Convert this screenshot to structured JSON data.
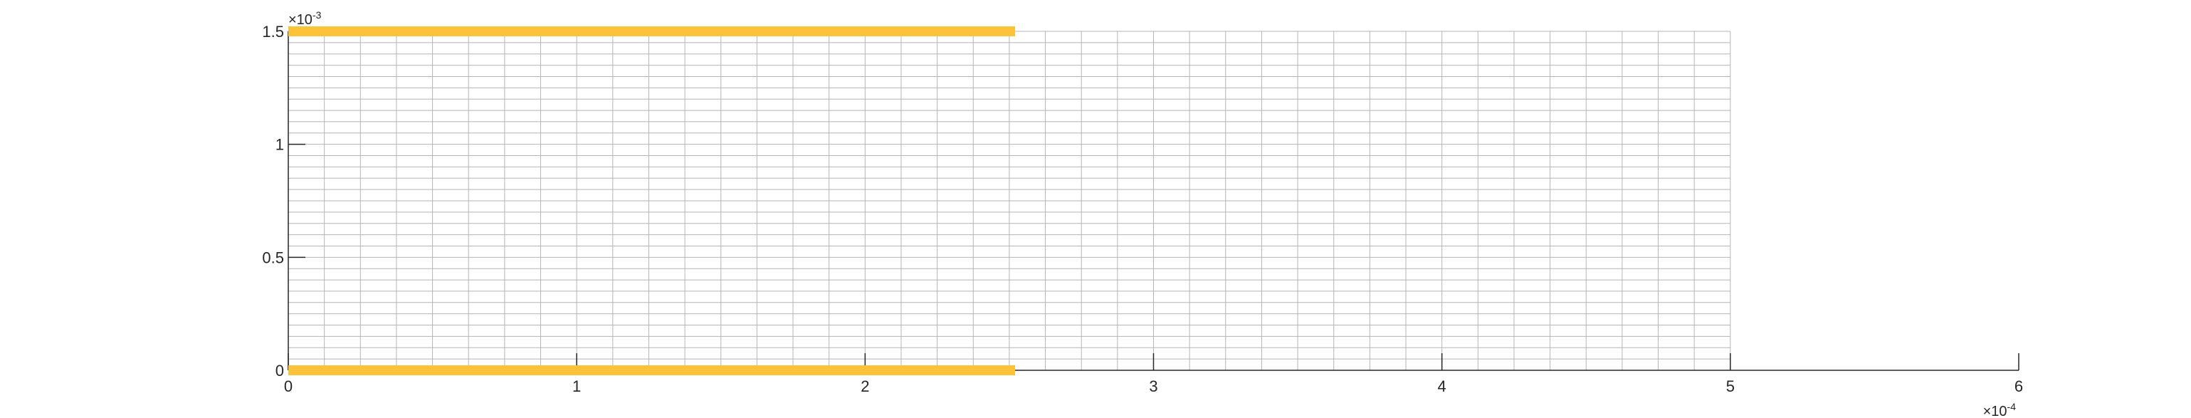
{
  "chart_data": {
    "type": "line",
    "title": "",
    "xlabel": "",
    "ylabel": "",
    "xlim": [
      0,
      6
    ],
    "ylim": [
      0,
      1.5
    ],
    "x_exponent_label": "×10",
    "x_exponent_power": "-4",
    "y_exponent_label": "×10",
    "y_exponent_power": "-3",
    "x_ticks": [
      0,
      1,
      2,
      3,
      4,
      5,
      6
    ],
    "y_ticks": [
      0,
      0.5,
      1,
      1.5
    ],
    "x_tick_labels": [
      "0",
      "1",
      "2",
      "3",
      "4",
      "5",
      "6"
    ],
    "y_tick_labels": [
      "0",
      "0.5",
      "1",
      "1.5"
    ],
    "mesh": {
      "x_range": [
        0,
        5
      ],
      "y_range": [
        0,
        1.5
      ],
      "x_divisions": 40,
      "y_divisions": 30,
      "color": "#b5b5b5"
    },
    "series": [
      {
        "x": [
          0,
          2.52
        ],
        "y": [
          1.5,
          1.5
        ],
        "color": "#fbc23a"
      },
      {
        "x": [
          0,
          2.52
        ],
        "y": [
          0,
          0
        ],
        "color": "#fbc23a"
      }
    ],
    "axis_color": "#262626",
    "grid": false
  }
}
